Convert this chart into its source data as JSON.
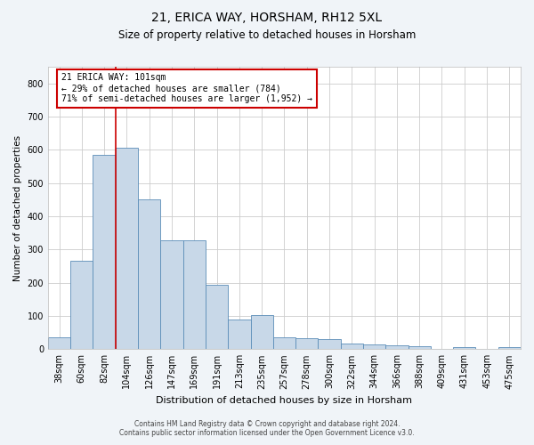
{
  "title1": "21, ERICA WAY, HORSHAM, RH12 5XL",
  "title2": "Size of property relative to detached houses in Horsham",
  "xlabel": "Distribution of detached houses by size in Horsham",
  "ylabel": "Number of detached properties",
  "categories": [
    "38sqm",
    "60sqm",
    "82sqm",
    "104sqm",
    "126sqm",
    "147sqm",
    "169sqm",
    "191sqm",
    "213sqm",
    "235sqm",
    "257sqm",
    "278sqm",
    "300sqm",
    "322sqm",
    "344sqm",
    "366sqm",
    "388sqm",
    "409sqm",
    "431sqm",
    "453sqm",
    "475sqm"
  ],
  "values": [
    35,
    265,
    585,
    605,
    450,
    328,
    328,
    195,
    90,
    102,
    35,
    32,
    30,
    16,
    14,
    11,
    10,
    0,
    5,
    0,
    6
  ],
  "bar_color": "#c8d8e8",
  "bar_edge_color": "#5b8db8",
  "annotation_box_text": "21 ERICA WAY: 101sqm\n← 29% of detached houses are smaller (784)\n71% of semi-detached houses are larger (1,952) →",
  "annotation_box_color": "#ffffff",
  "annotation_box_edge_color": "#cc0000",
  "vline_color": "#cc0000",
  "vline_x_index": 3,
  "ylim": [
    0,
    850
  ],
  "yticks": [
    0,
    100,
    200,
    300,
    400,
    500,
    600,
    700,
    800
  ],
  "footer1": "Contains HM Land Registry data © Crown copyright and database right 2024.",
  "footer2": "Contains public sector information licensed under the Open Government Licence v3.0.",
  "bg_color": "#f0f4f8",
  "plot_bg_color": "#ffffff",
  "title1_fontsize": 10,
  "title2_fontsize": 8.5,
  "xlabel_fontsize": 8,
  "ylabel_fontsize": 7.5,
  "tick_fontsize": 7,
  "annot_fontsize": 7,
  "footer_fontsize": 5.5
}
